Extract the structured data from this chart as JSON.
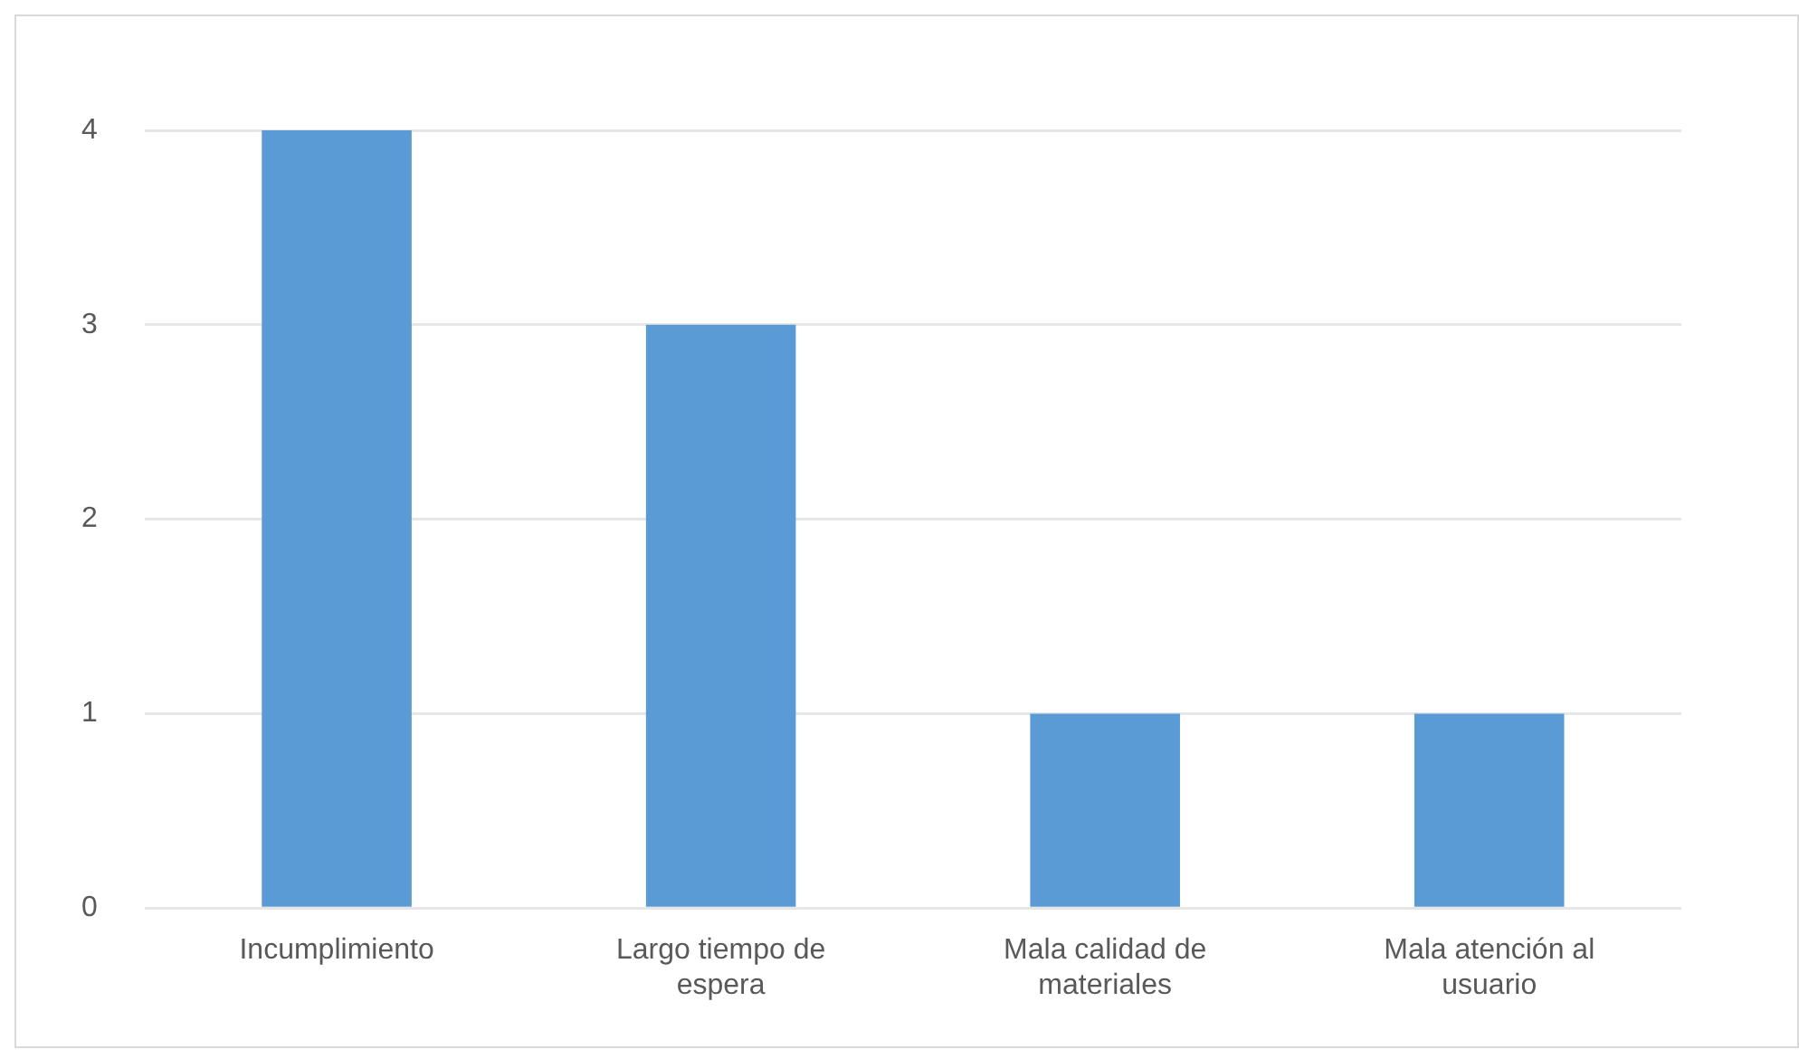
{
  "chart_data": {
    "type": "bar",
    "categories": [
      "Incumplimiento",
      "Largo tiempo de espera",
      "Mala calidad de materiales",
      "Mala atención al usuario"
    ],
    "values": [
      4,
      3,
      1,
      1
    ],
    "color": "#5b9bd5",
    "ylim": [
      0,
      4
    ],
    "yticks": [
      0,
      1,
      2,
      3,
      4
    ],
    "grid": "y"
  }
}
